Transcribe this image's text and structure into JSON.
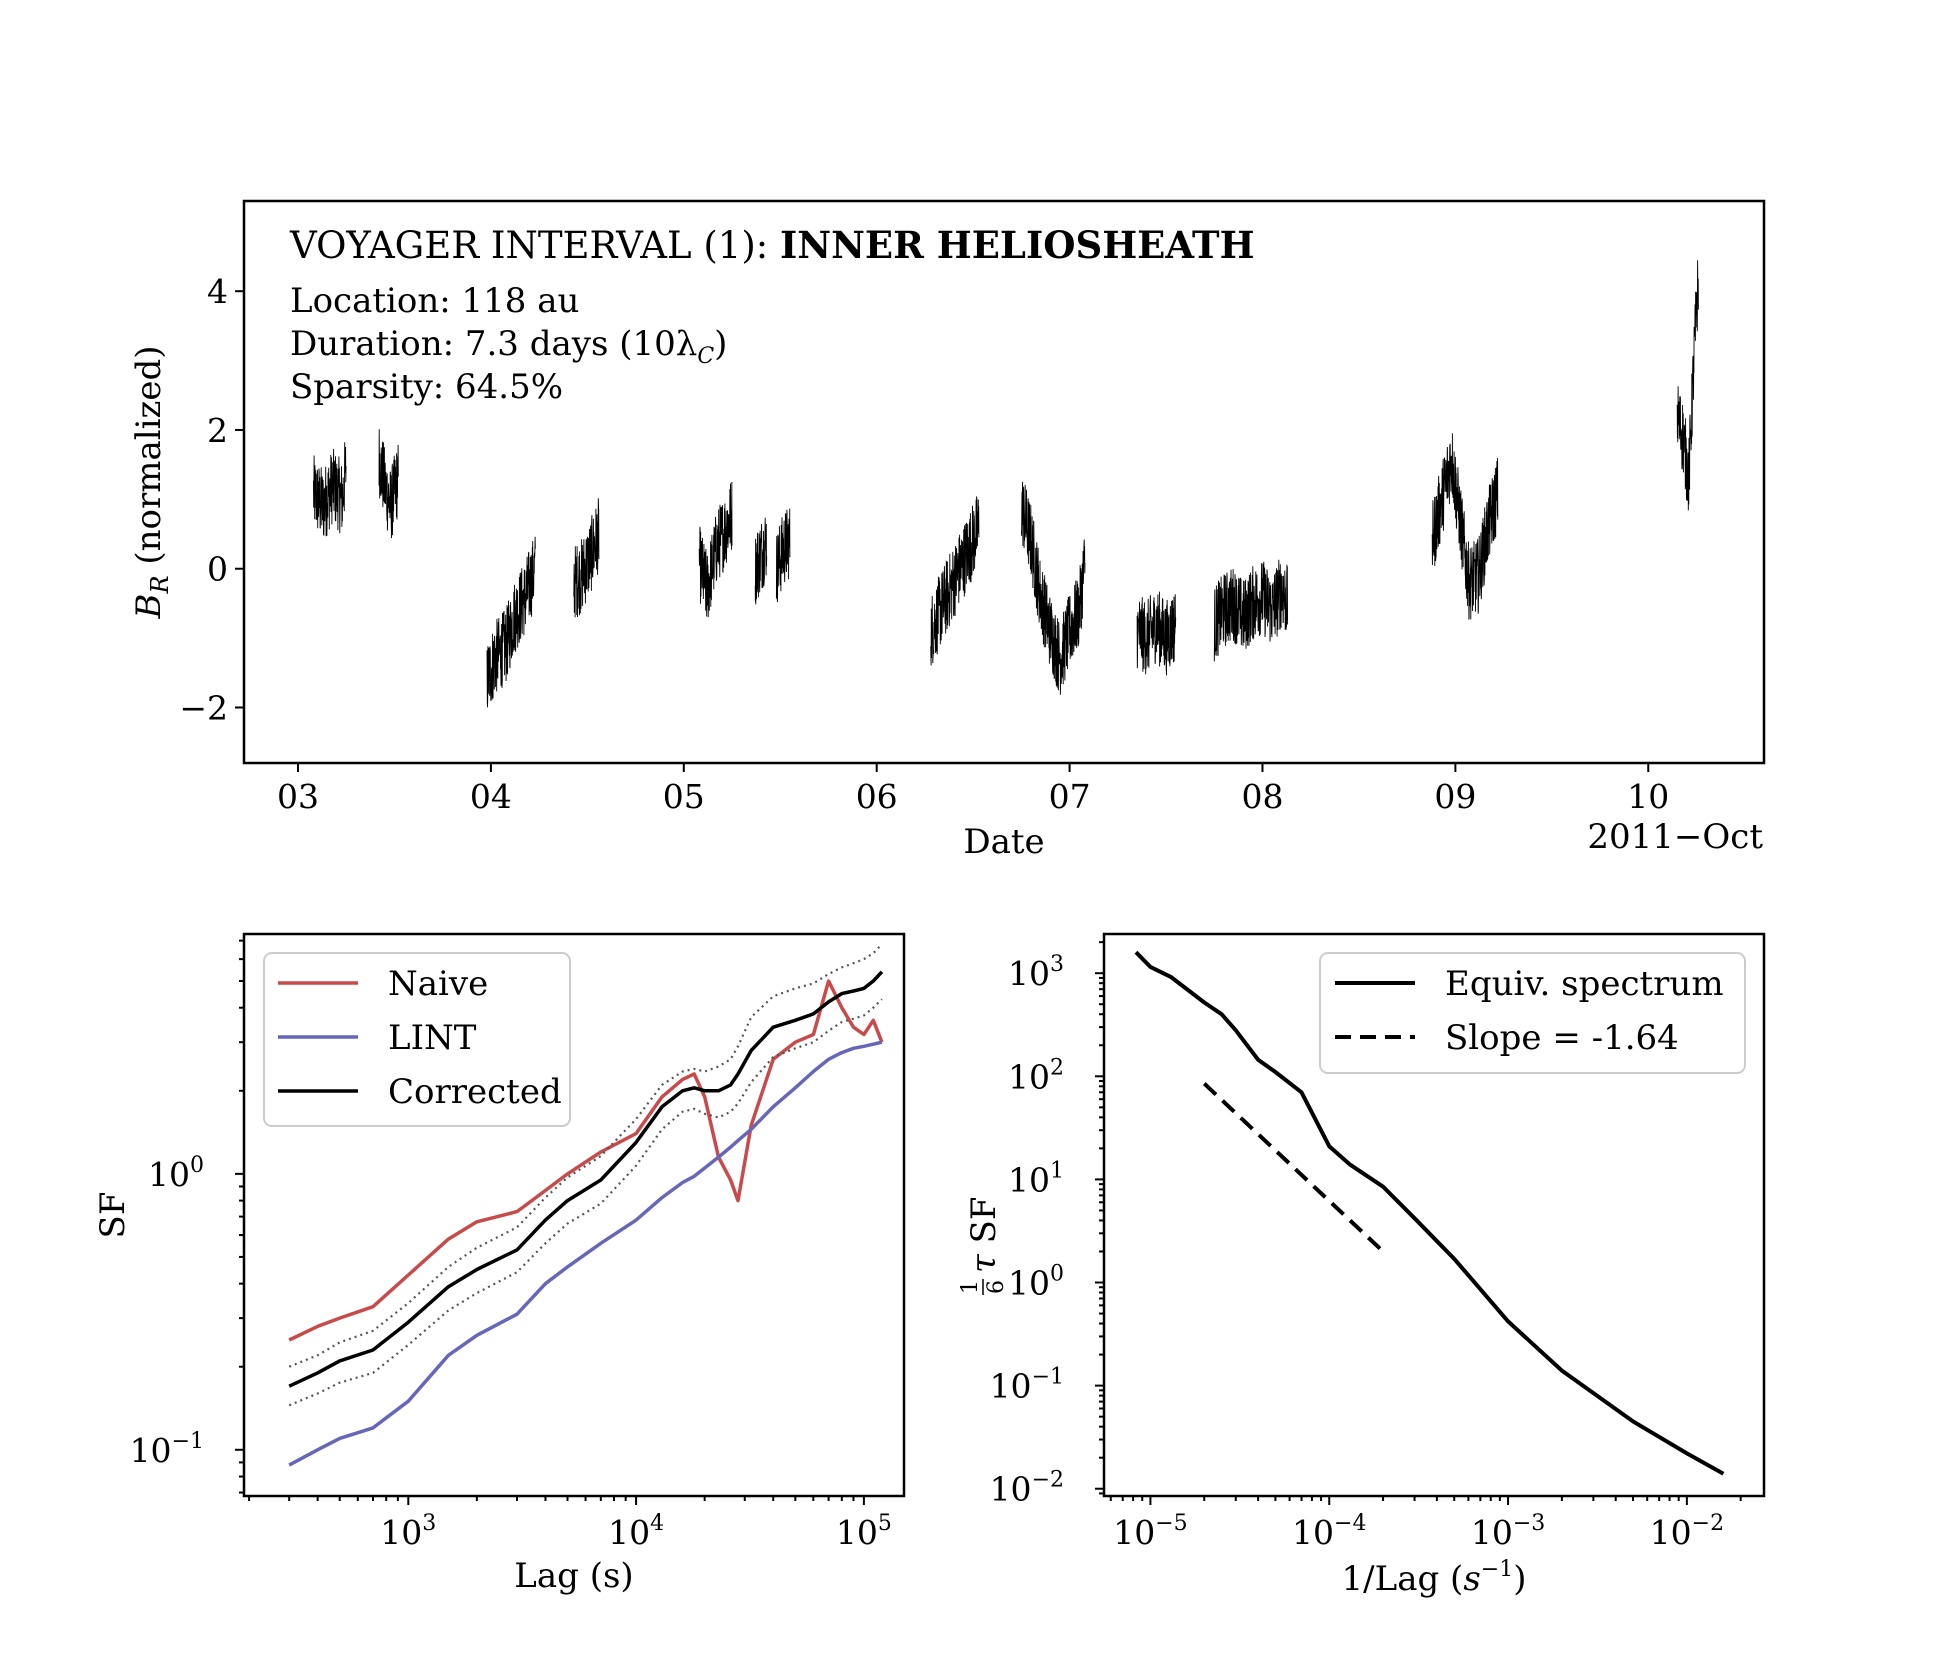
{
  "chart_data": [
    {
      "type": "line",
      "panel": "top",
      "title_prefix": "VOYAGER INTERVAL (1): ",
      "title_bold": "INNER HELIOSHEATH",
      "annotations": {
        "location": "Location: 118 au",
        "duration": "Duration: 7.3 days (10λ",
        "duration_sub": "C",
        "duration_close": ")",
        "sparsity": "Sparsity: 64.5%"
      },
      "xlabel": "Date",
      "xlabel_offset": "2011−Oct",
      "ylabel": "B",
      "ylabel_sub": "R",
      "ylabel_rest": " (normalized)",
      "xlim": [
        2.72,
        10.6
      ],
      "ylim": [
        -2.8,
        5.3
      ],
      "xticks": [
        3,
        4,
        5,
        6,
        7,
        8,
        9,
        10
      ],
      "xtick_labels": [
        "03",
        "04",
        "05",
        "06",
        "07",
        "08",
        "09",
        "10"
      ],
      "yticks": [
        -2,
        0,
        2,
        4
      ],
      "ytick_labels": [
        "−2",
        "0",
        "2",
        "4"
      ],
      "series": [
        {
          "name": "B_R",
          "segments": [
            {
              "x": [
                3.08,
                3.13,
                3.18,
                3.23,
                3.25
              ],
              "y": [
                1.1,
                0.9,
                1.2,
                1.0,
                1.5
              ]
            },
            {
              "x": [
                3.42,
                3.45,
                3.48,
                3.52
              ],
              "y": [
                1.6,
                1.2,
                0.9,
                1.3
              ]
            },
            {
              "x": [
                3.98,
                4.02,
                4.08,
                4.12,
                4.18,
                4.23
              ],
              "y": [
                -1.6,
                -1.3,
                -1.1,
                -0.7,
                -0.4,
                0.0
              ]
            },
            {
              "x": [
                4.43,
                4.47,
                4.52,
                4.56
              ],
              "y": [
                -0.2,
                -0.1,
                0.2,
                0.5
              ]
            },
            {
              "x": [
                5.08,
                5.12,
                5.17,
                5.22,
                5.25
              ],
              "y": [
                0.1,
                -0.3,
                0.3,
                0.6,
                0.8
              ]
            },
            {
              "x": [
                5.37,
                5.4,
                5.43
              ],
              "y": [
                0.0,
                0.2,
                0.4
              ]
            },
            {
              "x": [
                5.48,
                5.52,
                5.55
              ],
              "y": [
                0.0,
                0.3,
                0.4
              ]
            },
            {
              "x": [
                6.28,
                6.33,
                6.38,
                6.43,
                6.48,
                6.53
              ],
              "y": [
                -0.9,
                -0.6,
                -0.3,
                0.0,
                0.3,
                0.6
              ]
            },
            {
              "x": [
                6.75,
                6.8,
                6.85,
                6.9,
                6.95,
                7.0,
                7.05,
                7.08
              ],
              "y": [
                0.9,
                0.4,
                -0.4,
                -0.9,
                -1.3,
                -0.9,
                -0.6,
                0.1
              ]
            },
            {
              "x": [
                7.35,
                7.4,
                7.45,
                7.5,
                7.55
              ],
              "y": [
                -0.9,
                -1.0,
                -0.8,
                -1.0,
                -0.8
              ]
            },
            {
              "x": [
                7.75,
                7.8,
                7.85,
                7.9,
                7.95,
                8.0,
                8.05,
                8.1,
                8.13
              ],
              "y": [
                -0.8,
                -0.6,
                -0.5,
                -0.7,
                -0.5,
                -0.4,
                -0.6,
                -0.3,
                -0.5
              ]
            },
            {
              "x": [
                8.88,
                8.93,
                8.98,
                9.02,
                9.07,
                9.12,
                9.17,
                9.22
              ],
              "y": [
                0.4,
                1.0,
                1.6,
                0.8,
                -0.2,
                -0.1,
                0.6,
                1.1
              ]
            },
            {
              "x": [
                10.15,
                10.18,
                10.21,
                10.24,
                10.26
              ],
              "y": [
                2.2,
                1.9,
                1.3,
                3.2,
                4.2
              ]
            }
          ]
        }
      ]
    },
    {
      "type": "line",
      "panel": "bottom-left",
      "xlabel": "Lag (s)",
      "ylabel": "SF",
      "xscale": "log",
      "yscale": "log",
      "xlim": [
        190,
        150000
      ],
      "ylim": [
        0.068,
        7.4
      ],
      "xticks": [
        1000,
        10000,
        100000
      ],
      "xtick_labels_base": [
        "10",
        "10",
        "10"
      ],
      "xtick_labels_exp": [
        "3",
        "4",
        "5"
      ],
      "yticks": [
        0.1,
        1
      ],
      "ytick_labels_base": [
        "10",
        "10"
      ],
      "ytick_labels_exp": [
        "−1",
        "0"
      ],
      "legend": {
        "position": "upper-left",
        "entries": [
          "Naive",
          "LINT",
          "Corrected"
        ]
      },
      "x": [
        300,
        400,
        500,
        700,
        1000,
        1500,
        2000,
        3000,
        4000,
        5000,
        7000,
        10000,
        13000,
        16000,
        18000,
        20000,
        23000,
        26000,
        28000,
        32000,
        40000,
        50000,
        60000,
        70000,
        80000,
        90000,
        100000,
        110000,
        120000
      ],
      "series": [
        {
          "name": "Naive",
          "color": "#c84a4a",
          "values": [
            0.25,
            0.28,
            0.3,
            0.33,
            0.43,
            0.58,
            0.67,
            0.73,
            0.87,
            1.0,
            1.2,
            1.4,
            1.9,
            2.2,
            2.3,
            1.9,
            1.15,
            0.95,
            0.8,
            1.5,
            2.6,
            3.0,
            3.2,
            5.0,
            4.0,
            3.4,
            3.2,
            3.6,
            3.0
          ]
        },
        {
          "name": "LINT",
          "color": "#6666bb",
          "values": [
            0.088,
            0.1,
            0.11,
            0.12,
            0.15,
            0.22,
            0.26,
            0.31,
            0.4,
            0.46,
            0.56,
            0.68,
            0.82,
            0.93,
            0.98,
            1.05,
            1.15,
            1.25,
            1.32,
            1.45,
            1.75,
            2.05,
            2.35,
            2.6,
            2.75,
            2.85,
            2.9,
            2.95,
            3.0
          ]
        },
        {
          "name": "Corrected",
          "color": "#000000",
          "values": [
            0.17,
            0.19,
            0.21,
            0.23,
            0.29,
            0.39,
            0.45,
            0.53,
            0.68,
            0.8,
            0.95,
            1.3,
            1.75,
            2.0,
            2.05,
            2.0,
            2.0,
            2.1,
            2.3,
            2.8,
            3.4,
            3.6,
            3.8,
            4.2,
            4.5,
            4.6,
            4.7,
            5.0,
            5.4
          ]
        },
        {
          "name": "upper bound",
          "color": "#555555",
          "style": "dotted",
          "values": [
            0.2,
            0.22,
            0.245,
            0.27,
            0.34,
            0.46,
            0.54,
            0.64,
            0.82,
            0.97,
            1.16,
            1.58,
            2.1,
            2.35,
            2.4,
            2.35,
            2.45,
            2.6,
            2.9,
            3.7,
            4.4,
            4.7,
            4.9,
            5.3,
            5.6,
            5.8,
            6.0,
            6.3,
            6.8
          ]
        },
        {
          "name": "lower bound",
          "color": "#555555",
          "style": "dotted",
          "values": [
            0.145,
            0.16,
            0.175,
            0.19,
            0.24,
            0.32,
            0.37,
            0.44,
            0.56,
            0.66,
            0.78,
            1.07,
            1.45,
            1.68,
            1.72,
            1.65,
            1.6,
            1.68,
            1.8,
            2.15,
            2.65,
            2.85,
            3.0,
            3.3,
            3.55,
            3.65,
            3.75,
            4.0,
            4.3
          ]
        }
      ]
    },
    {
      "type": "line",
      "panel": "bottom-right",
      "xlabel": "1/Lag (",
      "xlabel_var": "s",
      "xlabel_exp": "−1",
      "xlabel_close": ")",
      "ylabel_frac_num": "1",
      "ylabel_frac_den": "6",
      "ylabel_tau": "τ",
      "ylabel_rest": " SF",
      "xscale": "log",
      "yscale": "log",
      "xlim": [
        5.5e-06,
        0.027
      ],
      "ylim": [
        0.0085,
        2400
      ],
      "xticks": [
        1e-05,
        0.0001,
        0.001,
        0.01
      ],
      "xtick_labels_base": [
        "10",
        "10",
        "10",
        "10"
      ],
      "xtick_labels_exp": [
        "−5",
        "−4",
        "−3",
        "−2"
      ],
      "yticks": [
        0.01,
        0.1,
        1,
        10,
        100,
        1000
      ],
      "ytick_labels_base": [
        "10",
        "10",
        "10",
        "10",
        "10",
        "10"
      ],
      "ytick_labels_exp": [
        "−2",
        "−1",
        "0",
        "1",
        "2",
        "3"
      ],
      "legend": {
        "position": "upper-right",
        "entries": [
          "Equiv. spectrum",
          "Slope = -1.64"
        ]
      },
      "series": [
        {
          "name": "Equiv. spectrum",
          "style": "solid",
          "x": [
            8.3e-06,
            1e-05,
            1.3e-05,
            2e-05,
            2.5e-05,
            3e-05,
            4e-05,
            5e-05,
            7e-05,
            0.0001,
            0.00013,
            0.0002,
            0.0003,
            0.0005,
            0.001,
            0.002,
            0.005,
            0.01,
            0.016
          ],
          "y": [
            1600,
            1150,
            920,
            520,
            400,
            280,
            145,
            110,
            70,
            21,
            14,
            8.5,
            4.2,
            1.7,
            0.42,
            0.14,
            0.045,
            0.022,
            0.014
          ]
        },
        {
          "name": "Slope = -1.64",
          "style": "dashed",
          "x": [
            2e-05,
            0.0002
          ],
          "y": [
            85,
            2.0
          ]
        }
      ]
    }
  ]
}
